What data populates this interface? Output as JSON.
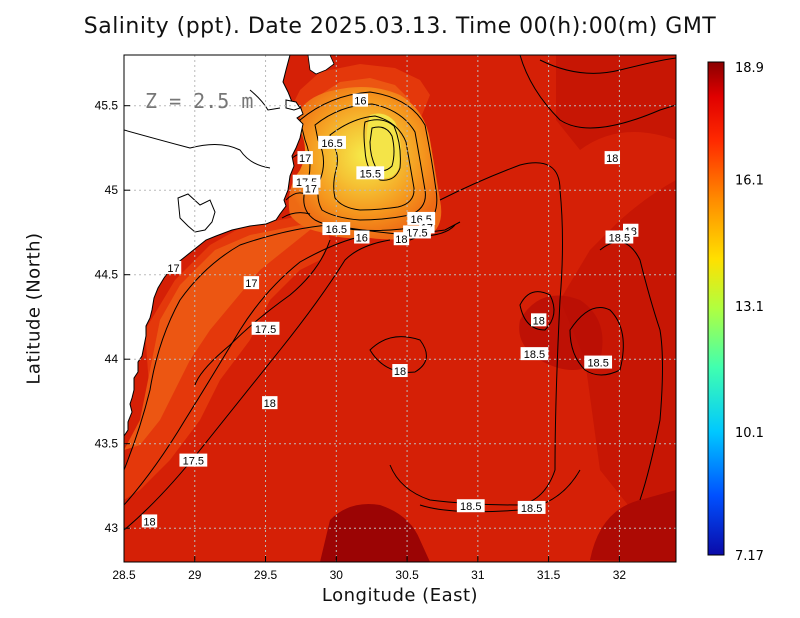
{
  "title": "Salinity (ppt). Date 2025.03.13. Time 00(h):00(m) GMT",
  "depth_label": "Z = 2.5 m",
  "xlabel": "Longitude (East)",
  "ylabel": "Latitude (North)",
  "colors": {
    "sea_dark": "#8f0000",
    "sea_main": "#d61c06",
    "sea_shelf": "#ea4a10",
    "sea_fresh": "#f58c18",
    "sea_freshest": "#f4dc3c",
    "land": "#ffffff"
  },
  "chart_data": {
    "type": "heatmap",
    "variable": "Salinity",
    "units": "ppt",
    "xlim": [
      28.5,
      32.4
    ],
    "ylim": [
      42.8,
      45.8
    ],
    "x_ticks": [
      "28.5",
      "29",
      "29.5",
      "30",
      "30.5",
      "31",
      "31.5",
      "32"
    ],
    "y_ticks": [
      "43",
      "43.5",
      "44",
      "44.5",
      "45",
      "45.5"
    ],
    "grid": true,
    "colorbar": {
      "min": 7.17,
      "max": 18.9,
      "tick_labels": [
        "18.9",
        "16.1",
        "13.1",
        "10.1",
        "7.17"
      ],
      "tick_values": [
        18.9,
        16.1,
        13.1,
        10.1,
        7.17
      ],
      "colors": [
        "#0a0aa8",
        "#0050ff",
        "#00c8ff",
        "#40ffb0",
        "#b0ff40",
        "#ffe000",
        "#ff8c00",
        "#ff2a00",
        "#e00000",
        "#8a0000"
      ]
    },
    "contour_labels": [
      {
        "text": "16",
        "lon": 30.17,
        "lat": 45.53
      },
      {
        "text": "16.5",
        "lon": 29.97,
        "lat": 45.28
      },
      {
        "text": "17",
        "lon": 29.78,
        "lat": 45.19
      },
      {
        "text": "15.5",
        "lon": 30.24,
        "lat": 45.1
      },
      {
        "text": "17.5",
        "lon": 29.79,
        "lat": 45.05
      },
      {
        "text": "17",
        "lon": 29.82,
        "lat": 45.01
      },
      {
        "text": "18",
        "lon": 31.95,
        "lat": 45.19
      },
      {
        "text": "16.5",
        "lon": 30.0,
        "lat": 44.77
      },
      {
        "text": "16",
        "lon": 30.18,
        "lat": 44.72
      },
      {
        "text": "16.5",
        "lon": 30.6,
        "lat": 44.83
      },
      {
        "text": "17",
        "lon": 30.64,
        "lat": 44.78
      },
      {
        "text": "17.5",
        "lon": 30.57,
        "lat": 44.75
      },
      {
        "text": "18",
        "lon": 30.46,
        "lat": 44.71
      },
      {
        "text": "18",
        "lon": 32.08,
        "lat": 44.76
      },
      {
        "text": "18.5",
        "lon": 32.0,
        "lat": 44.72
      },
      {
        "text": "17",
        "lon": 28.85,
        "lat": 44.54
      },
      {
        "text": "17",
        "lon": 29.4,
        "lat": 44.45
      },
      {
        "text": "17.5",
        "lon": 29.5,
        "lat": 44.18
      },
      {
        "text": "18",
        "lon": 31.43,
        "lat": 44.23
      },
      {
        "text": "18.5",
        "lon": 31.4,
        "lat": 44.03
      },
      {
        "text": "18.5",
        "lon": 31.85,
        "lat": 43.98
      },
      {
        "text": "18",
        "lon": 30.45,
        "lat": 43.93
      },
      {
        "text": "18",
        "lon": 29.53,
        "lat": 43.74
      },
      {
        "text": "17.5",
        "lon": 28.99,
        "lat": 43.4
      },
      {
        "text": "18.5",
        "lon": 30.95,
        "lat": 43.13
      },
      {
        "text": "18.5",
        "lon": 31.38,
        "lat": 43.12
      },
      {
        "text": "18",
        "lon": 28.68,
        "lat": 43.04
      }
    ]
  }
}
